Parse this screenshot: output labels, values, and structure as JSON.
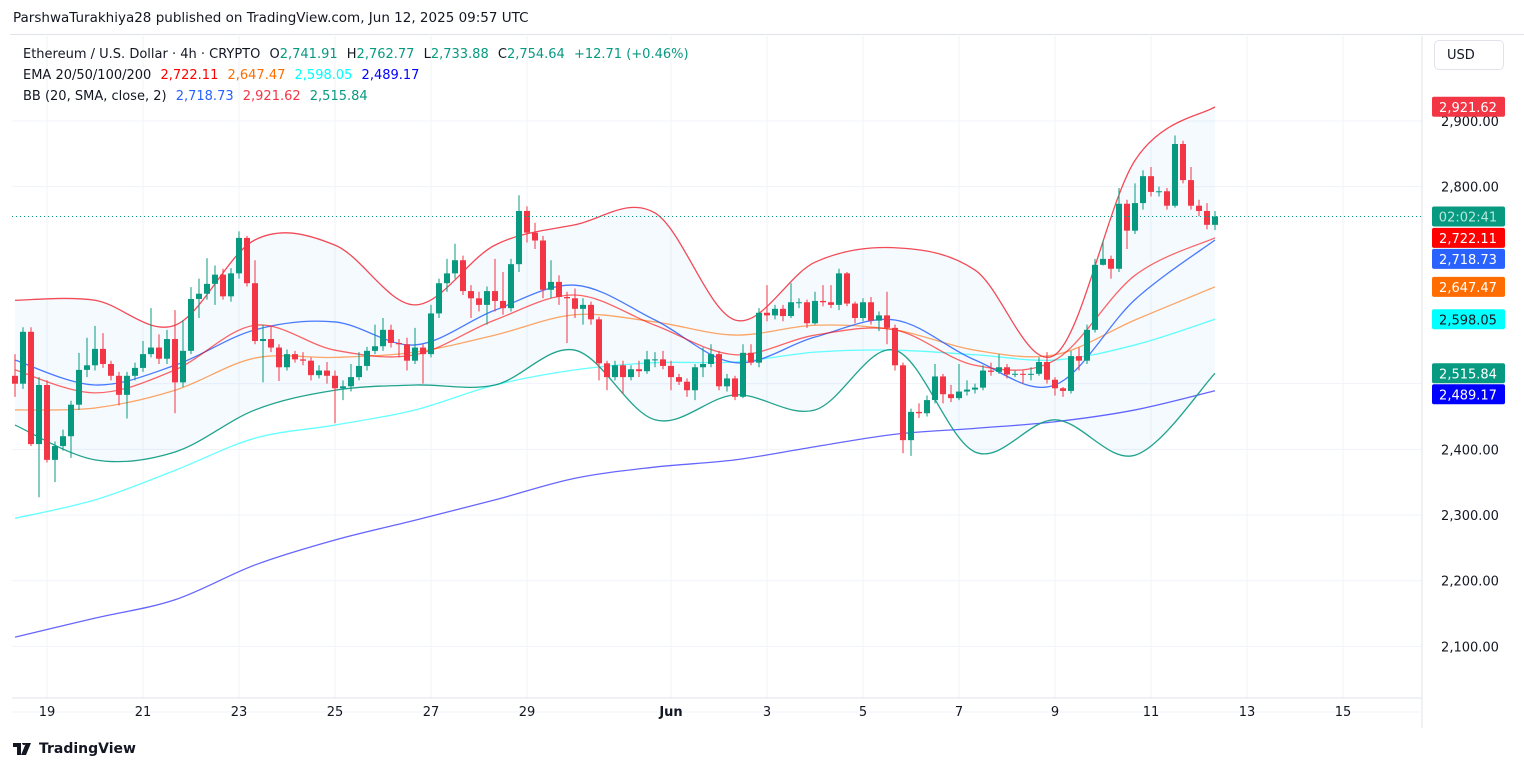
{
  "header": {
    "published": "ParshwaTurakhiya28 published on TradingView.com, Jun 12, 2025 09:57 UTC"
  },
  "legend": {
    "symbol": "Ethereum / U.S. Dollar · 4h · CRYPTO",
    "o_label": "O",
    "o": "2,741.91",
    "h_label": "H",
    "h": "2,762.77",
    "l_label": "L",
    "l": "2,733.88",
    "c_label": "C",
    "c": "2,754.64",
    "change": "+12.71 (+0.46%)",
    "ema_title": "EMA 20/50/100/200",
    "ema20": "2,722.11",
    "ema50": "2,647.47",
    "ema100": "2,598.05",
    "ema200": "2,489.17",
    "bb_title": "BB (20, SMA, close, 2)",
    "bb_basis": "2,718.73",
    "bb_upper": "2,921.62",
    "bb_lower": "2,515.84"
  },
  "currency_button": "USD",
  "footer": {
    "logo_text": "TradingView"
  },
  "colors": {
    "up": "#089981",
    "down": "#F23645",
    "ema20": "#FF0000",
    "ema50": "#FF6D00",
    "ema100": "#00FFFF",
    "ema200": "#0000FF",
    "bb_basis": "#2962FF",
    "bb_upper": "#F23645",
    "bb_lower": "#089981",
    "bb_fill": "rgba(33,150,243,0.05)"
  },
  "chart_data": {
    "type": "candlestick",
    "symbol": "ETHUSD",
    "interval": "4h",
    "first_candle": "2025-05-18T08:00",
    "last_candle": "2025-06-12T08:00",
    "ylim": [
      2020,
      3000
    ],
    "y_ticks": [
      {
        "v": 2100,
        "label": "2,100.00"
      },
      {
        "v": 2200,
        "label": "2,200.00"
      },
      {
        "v": 2300,
        "label": "2,300.00"
      },
      {
        "v": 2400,
        "label": "2,400.00"
      },
      {
        "v": 2800,
        "label": "2,800.00"
      },
      {
        "v": 2900,
        "label": "2,900.00"
      }
    ],
    "x_ticks": [
      {
        "label": "19",
        "date": "2025-05-19"
      },
      {
        "label": "21",
        "date": "2025-05-21"
      },
      {
        "label": "23",
        "date": "2025-05-23"
      },
      {
        "label": "25",
        "date": "2025-05-25"
      },
      {
        "label": "27",
        "date": "2025-05-27"
      },
      {
        "label": "29",
        "date": "2025-05-29"
      },
      {
        "label": "Jun",
        "date": "2025-06-01"
      },
      {
        "label": "3",
        "date": "2025-06-03"
      },
      {
        "label": "5",
        "date": "2025-06-05"
      },
      {
        "label": "7",
        "date": "2025-06-07"
      },
      {
        "label": "9",
        "date": "2025-06-09"
      },
      {
        "label": "11",
        "date": "2025-06-11"
      },
      {
        "label": "13",
        "date": "2025-06-13"
      },
      {
        "label": "15",
        "date": "2025-06-15"
      }
    ],
    "grid": true,
    "current_price": 2754.64,
    "countdown": "02:02:41",
    "price_labels": [
      {
        "v": 2921.62,
        "label": "2,921.62",
        "color": "#F23645",
        "text": "#ffffff"
      },
      {
        "v": 2722.11,
        "label": "2,722.11",
        "color": "#FF0000",
        "text": "#ffffff"
      },
      {
        "v": 2718.73,
        "label": "2,718.73",
        "color": "#2962FF",
        "text": "#ffffff"
      },
      {
        "v": 2647.47,
        "label": "2,647.47",
        "color": "#FF6D00",
        "text": "#ffffff"
      },
      {
        "v": 2598.05,
        "label": "2,598.05",
        "color": "#00FFFF",
        "text": "#131722"
      },
      {
        "v": 2515.84,
        "label": "2,515.84",
        "color": "#089981",
        "text": "#ffffff"
      },
      {
        "v": 2489.17,
        "label": "2,489.17",
        "color": "#0000FF",
        "text": "#ffffff"
      }
    ],
    "candles": [
      [
        2512,
        2545,
        2480,
        2500
      ],
      [
        2500,
        2586,
        2492,
        2579
      ],
      [
        2579,
        2586,
        2405,
        2408
      ],
      [
        2408,
        2510,
        2327,
        2498
      ],
      [
        2498,
        2505,
        2380,
        2384
      ],
      [
        2384,
        2412,
        2350,
        2405
      ],
      [
        2405,
        2430,
        2398,
        2420
      ],
      [
        2420,
        2474,
        2387,
        2468
      ],
      [
        2468,
        2547,
        2460,
        2521
      ],
      [
        2521,
        2570,
        2510,
        2528
      ],
      [
        2528,
        2588,
        2520,
        2553
      ],
      [
        2553,
        2577,
        2524,
        2530
      ],
      [
        2530,
        2535,
        2505,
        2512
      ],
      [
        2512,
        2518,
        2467,
        2483
      ],
      [
        2483,
        2518,
        2447,
        2512
      ],
      [
        2512,
        2532,
        2505,
        2524
      ],
      [
        2524,
        2565,
        2518,
        2545
      ],
      [
        2545,
        2615,
        2540,
        2555
      ],
      [
        2555,
        2575,
        2530,
        2538
      ],
      [
        2538,
        2582,
        2530,
        2568
      ],
      [
        2568,
        2612,
        2455,
        2502
      ],
      [
        2502,
        2597,
        2495,
        2550
      ],
      [
        2550,
        2647,
        2545,
        2629
      ],
      [
        2629,
        2660,
        2600,
        2637
      ],
      [
        2637,
        2691,
        2628,
        2652
      ],
      [
        2652,
        2680,
        2620,
        2666
      ],
      [
        2666,
        2675,
        2628,
        2633
      ],
      [
        2633,
        2676,
        2625,
        2668
      ],
      [
        2668,
        2732,
        2660,
        2722
      ],
      [
        2722,
        2725,
        2648,
        2653
      ],
      [
        2653,
        2688,
        2560,
        2565
      ],
      [
        2565,
        2590,
        2502,
        2568
      ],
      [
        2568,
        2588,
        2548,
        2555
      ],
      [
        2555,
        2560,
        2504,
        2525
      ],
      [
        2525,
        2552,
        2520,
        2545
      ],
      [
        2545,
        2550,
        2532,
        2537
      ],
      [
        2537,
        2548,
        2528,
        2535
      ],
      [
        2535,
        2540,
        2505,
        2513
      ],
      [
        2513,
        2528,
        2508,
        2520
      ],
      [
        2520,
        2533,
        2500,
        2512
      ],
      [
        2512,
        2520,
        2440,
        2493
      ],
      [
        2493,
        2505,
        2475,
        2496
      ],
      [
        2496,
        2530,
        2488,
        2510
      ],
      [
        2510,
        2548,
        2505,
        2527
      ],
      [
        2527,
        2556,
        2520,
        2550
      ],
      [
        2550,
        2590,
        2545,
        2557
      ],
      [
        2557,
        2600,
        2550,
        2582
      ],
      [
        2582,
        2590,
        2555,
        2562
      ],
      [
        2562,
        2568,
        2540,
        2560
      ],
      [
        2560,
        2570,
        2520,
        2535
      ],
      [
        2535,
        2585,
        2530,
        2555
      ],
      [
        2555,
        2560,
        2500,
        2545
      ],
      [
        2545,
        2620,
        2540,
        2607
      ],
      [
        2607,
        2660,
        2600,
        2653
      ],
      [
        2653,
        2690,
        2640,
        2668
      ],
      [
        2668,
        2713,
        2660,
        2688
      ],
      [
        2688,
        2695,
        2635,
        2641
      ],
      [
        2641,
        2650,
        2600,
        2630
      ],
      [
        2630,
        2640,
        2610,
        2620
      ],
      [
        2620,
        2648,
        2590,
        2641
      ],
      [
        2641,
        2690,
        2610,
        2626
      ],
      [
        2626,
        2670,
        2605,
        2615
      ],
      [
        2615,
        2690,
        2610,
        2682
      ],
      [
        2682,
        2787,
        2670,
        2763
      ],
      [
        2763,
        2770,
        2715,
        2730
      ],
      [
        2730,
        2745,
        2705,
        2718
      ],
      [
        2718,
        2725,
        2630,
        2643
      ],
      [
        2643,
        2688,
        2630,
        2655
      ],
      [
        2655,
        2665,
        2620,
        2632
      ],
      [
        2632,
        2640,
        2562,
        2630
      ],
      [
        2630,
        2645,
        2600,
        2614
      ],
      [
        2614,
        2630,
        2590,
        2620
      ],
      [
        2620,
        2625,
        2590,
        2598
      ],
      [
        2598,
        2602,
        2505,
        2531
      ],
      [
        2531,
        2535,
        2490,
        2510
      ],
      [
        2510,
        2535,
        2505,
        2528
      ],
      [
        2528,
        2535,
        2485,
        2510
      ],
      [
        2510,
        2528,
        2505,
        2522
      ],
      [
        2522,
        2535,
        2510,
        2519
      ],
      [
        2519,
        2550,
        2515,
        2537
      ],
      [
        2537,
        2548,
        2525,
        2537
      ],
      [
        2537,
        2550,
        2522,
        2527
      ],
      [
        2527,
        2535,
        2490,
        2510
      ],
      [
        2510,
        2515,
        2498,
        2503
      ],
      [
        2503,
        2508,
        2480,
        2490
      ],
      [
        2490,
        2530,
        2475,
        2525
      ],
      [
        2525,
        2555,
        2510,
        2530
      ],
      [
        2530,
        2560,
        2525,
        2545
      ],
      [
        2545,
        2550,
        2490,
        2496
      ],
      [
        2496,
        2515,
        2488,
        2508
      ],
      [
        2508,
        2512,
        2475,
        2480
      ],
      [
        2480,
        2560,
        2478,
        2547
      ],
      [
        2547,
        2560,
        2528,
        2532
      ],
      [
        2532,
        2615,
        2525,
        2608
      ],
      [
        2608,
        2650,
        2595,
        2604
      ],
      [
        2604,
        2620,
        2598,
        2614
      ],
      [
        2614,
        2620,
        2595,
        2603
      ],
      [
        2603,
        2653,
        2600,
        2624
      ],
      [
        2624,
        2630,
        2615,
        2624
      ],
      [
        2624,
        2628,
        2585,
        2592
      ],
      [
        2592,
        2640,
        2590,
        2626
      ],
      [
        2626,
        2650,
        2618,
        2624
      ],
      [
        2624,
        2650,
        2615,
        2620
      ],
      [
        2620,
        2675,
        2612,
        2668
      ],
      [
        2668,
        2670,
        2618,
        2622
      ],
      [
        2622,
        2625,
        2592,
        2600
      ],
      [
        2600,
        2630,
        2595,
        2624
      ],
      [
        2624,
        2632,
        2590,
        2596
      ],
      [
        2596,
        2610,
        2580,
        2604
      ],
      [
        2604,
        2640,
        2560,
        2585
      ],
      [
        2585,
        2590,
        2520,
        2528
      ],
      [
        2528,
        2532,
        2394,
        2414
      ],
      [
        2414,
        2462,
        2390,
        2457
      ],
      [
        2457,
        2470,
        2448,
        2455
      ],
      [
        2455,
        2482,
        2450,
        2475
      ],
      [
        2475,
        2530,
        2470,
        2511
      ],
      [
        2511,
        2515,
        2470,
        2484
      ],
      [
        2484,
        2498,
        2472,
        2478
      ],
      [
        2478,
        2530,
        2475,
        2488
      ],
      [
        2488,
        2505,
        2482,
        2491
      ],
      [
        2491,
        2500,
        2485,
        2494
      ],
      [
        2494,
        2528,
        2490,
        2520
      ],
      [
        2520,
        2532,
        2512,
        2518
      ],
      [
        2518,
        2545,
        2515,
        2525
      ],
      [
        2525,
        2530,
        2508,
        2514
      ],
      [
        2514,
        2520,
        2510,
        2515
      ],
      [
        2515,
        2520,
        2500,
        2514
      ],
      [
        2514,
        2525,
        2505,
        2515
      ],
      [
        2515,
        2540,
        2512,
        2533
      ],
      [
        2533,
        2548,
        2500,
        2506
      ],
      [
        2506,
        2510,
        2482,
        2493
      ],
      [
        2493,
        2495,
        2480,
        2489
      ],
      [
        2489,
        2550,
        2485,
        2542
      ],
      [
        2542,
        2555,
        2520,
        2535
      ],
      [
        2535,
        2590,
        2530,
        2582
      ],
      [
        2582,
        2690,
        2578,
        2681
      ],
      [
        2681,
        2718,
        2680,
        2690
      ],
      [
        2690,
        2695,
        2660,
        2675
      ],
      [
        2675,
        2798,
        2670,
        2774
      ],
      [
        2774,
        2780,
        2705,
        2733
      ],
      [
        2733,
        2805,
        2728,
        2775
      ],
      [
        2775,
        2825,
        2765,
        2816
      ],
      [
        2816,
        2830,
        2785,
        2792
      ],
      [
        2792,
        2800,
        2785,
        2793
      ],
      [
        2793,
        2798,
        2765,
        2771
      ],
      [
        2771,
        2878,
        2768,
        2865
      ],
      [
        2865,
        2870,
        2805,
        2810
      ],
      [
        2810,
        2830,
        2765,
        2771
      ],
      [
        2771,
        2780,
        2755,
        2763
      ],
      [
        2763,
        2775,
        2735,
        2741.91
      ],
      [
        2741.91,
        2762.77,
        2733.88,
        2754.64
      ]
    ],
    "indicators": {
      "ema20": [
        2521,
        2486,
        2521,
        2589,
        2551,
        2544,
        2597,
        2635,
        2589,
        2544,
        2574,
        2582,
        2528,
        2536,
        2665,
        2722.11
      ],
      "ema50": [
        2460,
        2463,
        2490,
        2539,
        2540,
        2548,
        2574,
        2605,
        2594,
        2574,
        2589,
        2582,
        2551,
        2544,
        2597,
        2647.47
      ],
      "ema100": [
        2295,
        2323,
        2368,
        2417,
        2437,
        2460,
        2498,
        2521,
        2532,
        2533,
        2548,
        2551,
        2544,
        2536,
        2559,
        2598.05
      ],
      "ema200": [
        2114,
        2143,
        2171,
        2224,
        2262,
        2292,
        2323,
        2356,
        2373,
        2384,
        2404,
        2423,
        2432,
        2442,
        2460,
        2489.17
      ],
      "bb_basis": [
        2536,
        2498,
        2528,
        2582,
        2594,
        2559,
        2612,
        2650,
        2597,
        2532,
        2571,
        2597,
        2536,
        2498,
        2628,
        2718.73
      ],
      "bb_upper": [
        2627,
        2627,
        2589,
        2719,
        2711,
        2620,
        2711,
        2742,
        2760,
        2597,
        2685,
        2707,
        2673,
        2544,
        2840,
        2921.62
      ],
      "bb_lower": [
        2437,
        2384,
        2396,
        2460,
        2490,
        2498,
        2498,
        2551,
        2445,
        2483,
        2460,
        2551,
        2396,
        2445,
        2391,
        2515.84
      ]
    }
  }
}
